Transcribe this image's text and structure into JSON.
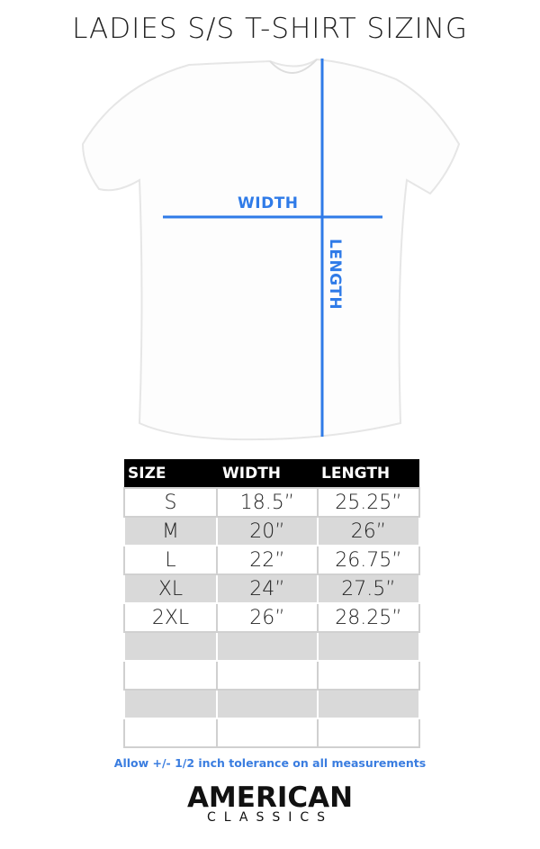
{
  "title": "LADIES S/S T-SHIRT SIZING",
  "diagram": {
    "width_label": "WIDTH",
    "length_label": "LENGTH",
    "line_color": "#2f7be8"
  },
  "table": {
    "headers": [
      "SIZE",
      "WIDTH",
      "LENGTH"
    ],
    "rows": [
      [
        "S",
        "18.5”",
        "25.25”"
      ],
      [
        "M",
        "20”",
        "26”"
      ],
      [
        "L",
        "22”",
        "26.75”"
      ],
      [
        "XL",
        "24”",
        "27.5”"
      ],
      [
        "2XL",
        "26”",
        "28.25”"
      ],
      [
        "",
        "",
        ""
      ],
      [
        "",
        "",
        ""
      ],
      [
        "",
        "",
        ""
      ],
      [
        "",
        "",
        ""
      ]
    ]
  },
  "note": "Allow +/- 1/2 inch tolerance on all measurements",
  "logo": {
    "line1": "AMERICAN",
    "line2": "CLASSICS"
  }
}
